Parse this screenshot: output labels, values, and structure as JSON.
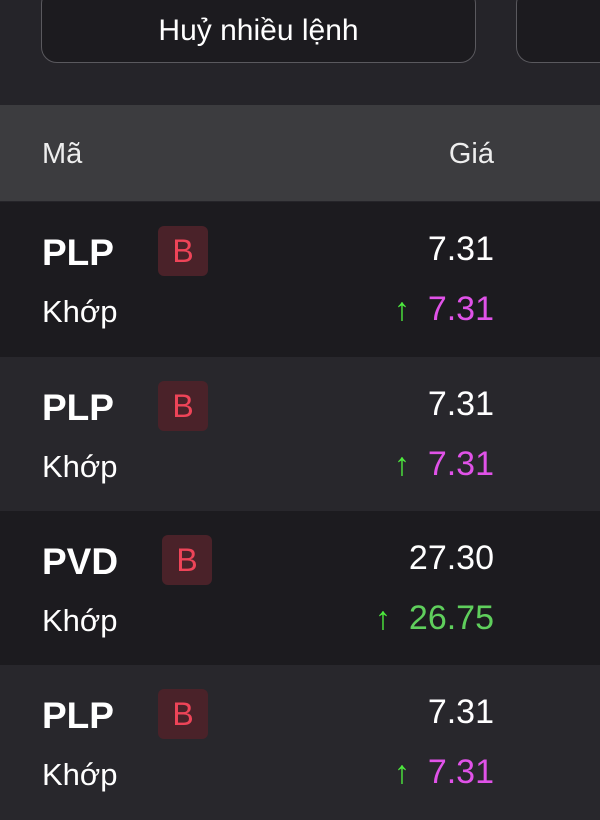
{
  "toolbar": {
    "cancel_multiple_label": "Huỷ nhiều lệnh"
  },
  "table": {
    "headers": {
      "symbol": "Mã",
      "price": "Giá"
    },
    "rows": [
      {
        "symbol": "PLP",
        "side": "B",
        "price": "7.31",
        "status": "Khớp",
        "match_price": "7.31",
        "match_color": "#e052e8",
        "trend": "up"
      },
      {
        "symbol": "PLP",
        "side": "B",
        "price": "7.31",
        "status": "Khớp",
        "match_price": "7.31",
        "match_color": "#e052e8",
        "trend": "up"
      },
      {
        "symbol": "PVD",
        "side": "B",
        "price": "27.30",
        "status": "Khớp",
        "match_price": "26.75",
        "match_color": "#5fcf5c",
        "trend": "up"
      },
      {
        "symbol": "PLP",
        "side": "B",
        "price": "7.31",
        "status": "Khớp",
        "match_price": "7.31",
        "match_color": "#e052e8",
        "trend": "up"
      }
    ]
  },
  "colors": {
    "buy_badge": "#ee4458",
    "up_arrow": "#4dea3d"
  }
}
